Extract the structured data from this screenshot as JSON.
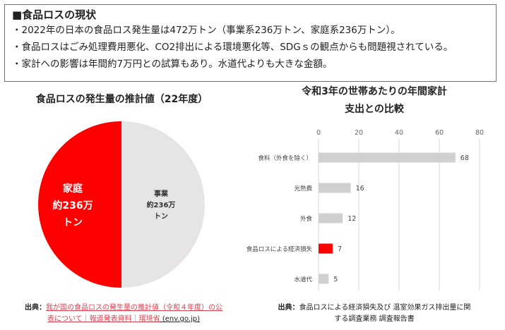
{
  "summary": {
    "heading": "■食品ロスの現状",
    "lines": [
      "・2022年の日本の食品ロス発生量は472万トン（事業系236万トン、家庭系236万トン）。",
      "・食品ロスはごみ処理費用悪化、CO2排出による環境悪化等、SDGｓの観点からも問題視されている。",
      "・家計への影響は年間約7万円との試算もあり。水道代よりも大きな金額。"
    ]
  },
  "chart_data": [
    {
      "type": "pie",
      "title": "食品ロスの発生量の推計値（22年度）",
      "slices": [
        {
          "label": "家庭",
          "value_label": "約236万",
          "unit": "トン",
          "value": 236,
          "color": "#ff0000"
        },
        {
          "label": "事業",
          "value_label": "約236万",
          "unit": "トン",
          "value": 236,
          "color": "#e6e4e4"
        }
      ]
    },
    {
      "type": "bar",
      "orientation": "horizontal",
      "title_lines": [
        "令和3年の世帯あたりの年間家計",
        "支出との比較"
      ],
      "categories": [
        "食料（外食を除く）",
        "光熱費",
        "外食",
        "食品ロスによる経済損失",
        "水道代"
      ],
      "values": [
        68,
        16,
        12,
        7,
        5
      ],
      "colors": [
        "#d0d0d0",
        "#d0d0d0",
        "#d0d0d0",
        "#ff0000",
        "#d0d0d0"
      ],
      "xlim": [
        0,
        80
      ],
      "xticks": [
        0,
        20,
        40,
        60,
        80
      ],
      "grid": true
    }
  ],
  "sources": {
    "left_prefix": "出典：",
    "left_link": "我が国の食品ロスの発生量の推計値（令和４年度）の公",
    "left_link2": "表について｜報道発表資料｜環境省",
    "left_tail": " (env.go.jp)",
    "right_prefix": "出典：",
    "right_text": "食品ロスによる経済損失及び 温室効果ガス排出量に関",
    "right_text2": "する調査業務 調査報告書"
  }
}
